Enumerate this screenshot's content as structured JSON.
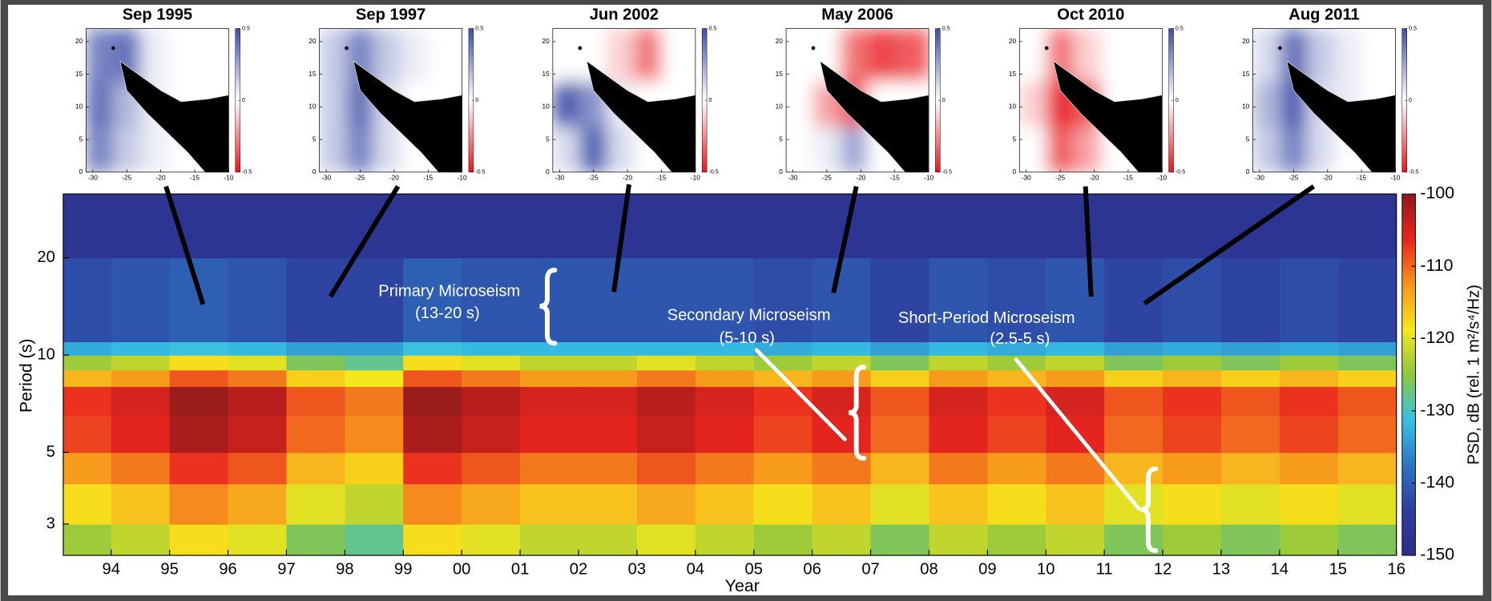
{
  "chart_data": [
    {
      "type": "heatmap",
      "xlabel": "Year",
      "ylabel": "Period (s)",
      "colorbar_label": "PSD, dB (rel. 1 m²/s⁴/Hz)",
      "xlim": [
        1993.18,
        2016
      ],
      "ylim": [
        2.4,
        31.5
      ],
      "ylog": true,
      "xticks": [
        {
          "value": 1994,
          "label": "94"
        },
        {
          "value": 1995,
          "label": "95"
        },
        {
          "value": 1996,
          "label": "96"
        },
        {
          "value": 1997,
          "label": "97"
        },
        {
          "value": 1998,
          "label": "98"
        },
        {
          "value": 1999,
          "label": "99"
        },
        {
          "value": 2000,
          "label": "00"
        },
        {
          "value": 2001,
          "label": "01"
        },
        {
          "value": 2002,
          "label": "02"
        },
        {
          "value": 2003,
          "label": "03"
        },
        {
          "value": 2004,
          "label": "04"
        },
        {
          "value": 2005,
          "label": "05"
        },
        {
          "value": 2006,
          "label": "06"
        },
        {
          "value": 2007,
          "label": "07"
        },
        {
          "value": 2008,
          "label": "08"
        },
        {
          "value": 2009,
          "label": "09"
        },
        {
          "value": 2010,
          "label": "10"
        },
        {
          "value": 2011,
          "label": "11"
        },
        {
          "value": 2012,
          "label": "12"
        },
        {
          "value": 2013,
          "label": "13"
        },
        {
          "value": 2014,
          "label": "14"
        },
        {
          "value": 2015,
          "label": "15"
        },
        {
          "value": 2016,
          "label": "16"
        }
      ],
      "yticks": [
        3,
        5,
        10,
        20
      ],
      "clim": [
        -150,
        -100
      ],
      "cticks": [
        -100,
        -110,
        -120,
        -130,
        -140,
        -150
      ],
      "colormap": [
        "#2b2f86",
        "#2e3d9f",
        "#2d75c0",
        "#37c2e5",
        "#8dc63f",
        "#f7e81c",
        "#f7941d",
        "#e8251f",
        "#8b1a1a"
      ],
      "x_edges": [
        1993.18,
        1994,
        1995,
        1996,
        1997,
        1998,
        1999,
        2000,
        2001,
        2002,
        2003,
        2004,
        2005,
        2006,
        2007,
        2008,
        2009,
        2010,
        2011,
        2012,
        2013,
        2014,
        2015,
        2016
      ],
      "y_edges": [
        2.4,
        3,
        4,
        5,
        6.5,
        8,
        9,
        10,
        11,
        20,
        31.5
      ],
      "z": [
        [
          -124,
          -122,
          -118,
          -120,
          -126,
          -128,
          -118,
          -120,
          -122,
          -122,
          -120,
          -122,
          -124,
          -122,
          -126,
          -122,
          -124,
          -122,
          -126,
          -124,
          -126,
          -124,
          -126
        ],
        [
          -118,
          -116,
          -112,
          -114,
          -120,
          -122,
          -112,
          -114,
          -116,
          -116,
          -114,
          -116,
          -118,
          -116,
          -120,
          -116,
          -118,
          -116,
          -120,
          -118,
          -120,
          -118,
          -120
        ],
        [
          -113,
          -111,
          -107,
          -109,
          -115,
          -117,
          -107,
          -109,
          -111,
          -111,
          -109,
          -111,
          -113,
          -111,
          -115,
          -111,
          -113,
          -111,
          -115,
          -113,
          -115,
          -113,
          -115
        ],
        [
          -108,
          -106,
          -102,
          -104,
          -110,
          -112,
          -102,
          -104,
          -106,
          -106,
          -104,
          -106,
          -108,
          -106,
          -110,
          -106,
          -108,
          -106,
          -110,
          -108,
          -110,
          -108,
          -110
        ],
        [
          -107,
          -105,
          -101,
          -103,
          -109,
          -111,
          -101,
          -103,
          -105,
          -105,
          -103,
          -105,
          -107,
          -105,
          -109,
          -105,
          -107,
          -105,
          -109,
          -107,
          -109,
          -107,
          -109
        ],
        [
          -115,
          -113,
          -109,
          -111,
          -117,
          -119,
          -109,
          -111,
          -113,
          -113,
          -111,
          -113,
          -115,
          -113,
          -117,
          -113,
          -115,
          -113,
          -117,
          -115,
          -117,
          -115,
          -117
        ],
        [
          -124,
          -122,
          -118,
          -120,
          -126,
          -128,
          -118,
          -120,
          -122,
          -122,
          -120,
          -122,
          -124,
          -122,
          -126,
          -122,
          -124,
          -122,
          -126,
          -124,
          -126,
          -124,
          -126
        ],
        [
          -133,
          -132,
          -131,
          -132,
          -134,
          -134,
          -131,
          -132,
          -132,
          -132,
          -132,
          -132,
          -133,
          -132,
          -134,
          -132,
          -133,
          -132,
          -134,
          -133,
          -134,
          -133,
          -134
        ],
        [
          -142,
          -141,
          -140,
          -141,
          -143,
          -143,
          -140,
          -141,
          -141,
          -141,
          -141,
          -141,
          -142,
          -141,
          -143,
          -141,
          -142,
          -141,
          -143,
          -142,
          -143,
          -142,
          -143
        ],
        [
          -147,
          -147,
          -147,
          -147,
          -147,
          -147,
          -147,
          -147,
          -147,
          -147,
          -147,
          -147,
          -147,
          -147,
          -147,
          -147,
          -147,
          -147,
          -147,
          -147,
          -147,
          -147,
          -147
        ]
      ],
      "annotations": [
        [
          "Primary Microseism",
          "(13-20 s)"
        ],
        [
          "Secondary Microseism",
          "(5-10 s)"
        ],
        [
          "Short-Period Microseism",
          "(2.5-5 s)"
        ]
      ]
    },
    {
      "type": "heatmap",
      "title": "Sep 1995",
      "xlim": [
        -31,
        -10
      ],
      "ylim": [
        0,
        22
      ],
      "xticks": [
        -30,
        -25,
        -20,
        -15,
        -10
      ],
      "yticks": [
        0,
        5,
        10,
        15,
        20
      ],
      "clim": [
        -0.5,
        0.5
      ],
      "cticks": [
        -0.5,
        0,
        0.5
      ],
      "colormap": [
        "#e8151b",
        "#ffffff",
        "#3c4ea8"
      ],
      "x_edges": [
        -31,
        -27,
        -23,
        -19,
        -15,
        -10
      ],
      "y_edges": [
        0,
        7,
        14,
        22
      ],
      "z": [
        [
          0.35,
          0.15,
          0.05,
          0,
          0
        ],
        [
          0.4,
          0.2,
          0.05,
          0,
          0
        ],
        [
          0.35,
          0.4,
          0.05,
          0,
          0
        ]
      ]
    },
    {
      "type": "heatmap",
      "title": "Sep 1997",
      "xlim": [
        -31,
        -10
      ],
      "ylim": [
        0,
        22
      ],
      "xticks": [
        -30,
        -25,
        -20,
        -15,
        -10
      ],
      "yticks": [
        0,
        5,
        10,
        15,
        20
      ],
      "clim": [
        -0.5,
        0.5
      ],
      "cticks": [
        -0.5,
        0,
        0.5
      ],
      "colormap": [
        "#e8151b",
        "#ffffff",
        "#3c4ea8"
      ],
      "x_edges": [
        -31,
        -27,
        -23,
        -19,
        -15,
        -10
      ],
      "y_edges": [
        0,
        7,
        14,
        22
      ],
      "z": [
        [
          0.15,
          0.35,
          0.1,
          0,
          0
        ],
        [
          0.15,
          0.4,
          0.1,
          0,
          0
        ],
        [
          0.15,
          0.35,
          0.15,
          0.05,
          0
        ]
      ]
    },
    {
      "type": "heatmap",
      "title": "Jun 2002",
      "xlim": [
        -31,
        -10
      ],
      "ylim": [
        0,
        22
      ],
      "xticks": [
        -30,
        -25,
        -20,
        -15,
        -10
      ],
      "yticks": [
        0,
        5,
        10,
        15,
        20
      ],
      "clim": [
        -0.5,
        0.5
      ],
      "cticks": [
        -0.5,
        0,
        0.5
      ],
      "colormap": [
        "#e8151b",
        "#ffffff",
        "#3c4ea8"
      ],
      "x_edges": [
        -31,
        -27,
        -23,
        -19,
        -15,
        -10
      ],
      "y_edges": [
        0,
        7,
        14,
        22
      ],
      "z": [
        [
          0.1,
          0.45,
          0.1,
          0,
          0
        ],
        [
          0.45,
          0.3,
          0.05,
          0,
          0
        ],
        [
          0,
          0,
          -0.1,
          -0.3,
          0
        ]
      ]
    },
    {
      "type": "heatmap",
      "title": "May 2006",
      "xlim": [
        -31,
        -10
      ],
      "ylim": [
        0,
        22
      ],
      "xticks": [
        -30,
        -25,
        -20,
        -15,
        -10
      ],
      "yticks": [
        0,
        5,
        10,
        15,
        20
      ],
      "clim": [
        -0.5,
        0.5
      ],
      "cticks": [
        -0.5,
        0,
        0.5
      ],
      "colormap": [
        "#e8151b",
        "#ffffff",
        "#3c4ea8"
      ],
      "x_edges": [
        -31,
        -27,
        -23,
        -19,
        -15,
        -10
      ],
      "y_edges": [
        0,
        7,
        14,
        22
      ],
      "z": [
        [
          0,
          0.05,
          0.25,
          0,
          0
        ],
        [
          0,
          -0.2,
          -0.35,
          0,
          0
        ],
        [
          0,
          0,
          -0.3,
          -0.4,
          -0.35
        ]
      ]
    },
    {
      "type": "heatmap",
      "title": "Oct 2010",
      "xlim": [
        -31,
        -10
      ],
      "ylim": [
        0,
        22
      ],
      "xticks": [
        -30,
        -25,
        -20,
        -15,
        -10
      ],
      "yticks": [
        0,
        5,
        10,
        15,
        20
      ],
      "clim": [
        -0.5,
        0.5
      ],
      "cticks": [
        -0.5,
        0,
        0.5
      ],
      "colormap": [
        "#e8151b",
        "#ffffff",
        "#3c4ea8"
      ],
      "x_edges": [
        -31,
        -27,
        -23,
        -19,
        -15,
        -10
      ],
      "y_edges": [
        0,
        7,
        14,
        22
      ],
      "z": [
        [
          0,
          -0.35,
          -0.2,
          0,
          0
        ],
        [
          -0.1,
          -0.45,
          -0.35,
          0,
          0
        ],
        [
          0,
          -0.3,
          -0.1,
          0,
          0
        ]
      ]
    },
    {
      "type": "heatmap",
      "title": "Aug 2011",
      "xlim": [
        -31,
        -10
      ],
      "ylim": [
        0,
        22
      ],
      "xticks": [
        -30,
        -25,
        -20,
        -15,
        -10
      ],
      "yticks": [
        0,
        5,
        10,
        15,
        20
      ],
      "clim": [
        -0.5,
        0.5
      ],
      "cticks": [
        -0.5,
        0,
        0.5
      ],
      "colormap": [
        "#e8151b",
        "#ffffff",
        "#3c4ea8"
      ],
      "x_edges": [
        -31,
        -27,
        -23,
        -19,
        -15,
        -10
      ],
      "y_edges": [
        0,
        7,
        14,
        22
      ],
      "z": [
        [
          0.15,
          0.35,
          0.1,
          0,
          0
        ],
        [
          0.2,
          0.45,
          0.1,
          0.05,
          0
        ],
        [
          0.1,
          0.4,
          0.15,
          0.05,
          0
        ]
      ]
    }
  ]
}
